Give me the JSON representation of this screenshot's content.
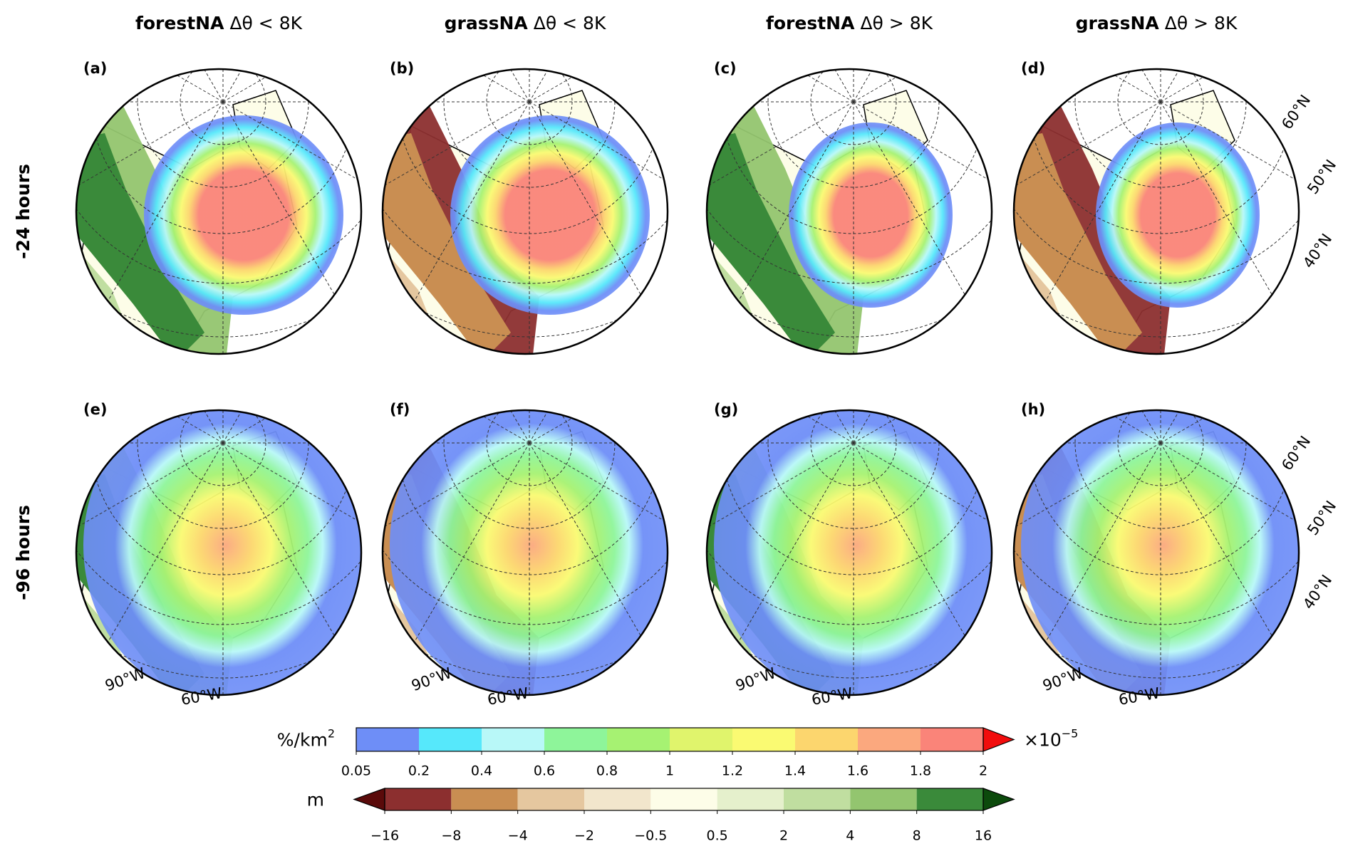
{
  "columns": [
    {
      "name": "forestNA",
      "condition": "Δθ < 8K"
    },
    {
      "name": "grassNA",
      "condition": "Δθ < 8K"
    },
    {
      "name": "forestNA",
      "condition": "Δθ > 8K"
    },
    {
      "name": "grassNA",
      "condition": "Δθ > 8K"
    }
  ],
  "rows": [
    "-24 hours",
    "-96 hours"
  ],
  "panels": [
    "(a)",
    "(b)",
    "(c)",
    "(d)",
    "(e)",
    "(f)",
    "(g)",
    "(h)"
  ],
  "longitude_labels": [
    "90°W",
    "60°W"
  ],
  "latitude_labels": [
    "60°N",
    "50°N",
    "40°N"
  ],
  "colorbars": [
    {
      "label": "%/km",
      "label_superscript": "2",
      "scale": "×10",
      "scale_superscript": "−5",
      "ticks": [
        0.05,
        0.2,
        0.4,
        0.6,
        0.8,
        1,
        1.2,
        1.4,
        1.6,
        1.8,
        2
      ],
      "colors": [
        "#6e8ef7",
        "#56e8fb",
        "#b8f8f8",
        "#8ef59a",
        "#a6f272",
        "#e0f46c",
        "#fafa72",
        "#fcd66e",
        "#fba87e",
        "#fa8479"
      ],
      "extend_max_color": "#f20d0d"
    },
    {
      "label": "m",
      "ticks": [
        {
          "value": -16,
          "label": "−16"
        },
        {
          "value": -8,
          "label": "−8"
        },
        {
          "value": -4,
          "label": "−4"
        },
        {
          "value": -2,
          "label": "−2"
        },
        {
          "value": -0.5,
          "label": "−0.5"
        },
        0.5,
        2,
        4,
        8,
        16
      ],
      "colors": [
        "#8c2f2f",
        "#c98e52",
        "#e5c79f",
        "#f2e6cc",
        "#fdfde8",
        "#e5f0cc",
        "#c0dea0",
        "#93c56f",
        "#3a8a3a"
      ],
      "extend_min_color": "#5a0a0a",
      "extend_max_color": "#0c4a0c"
    }
  ]
}
